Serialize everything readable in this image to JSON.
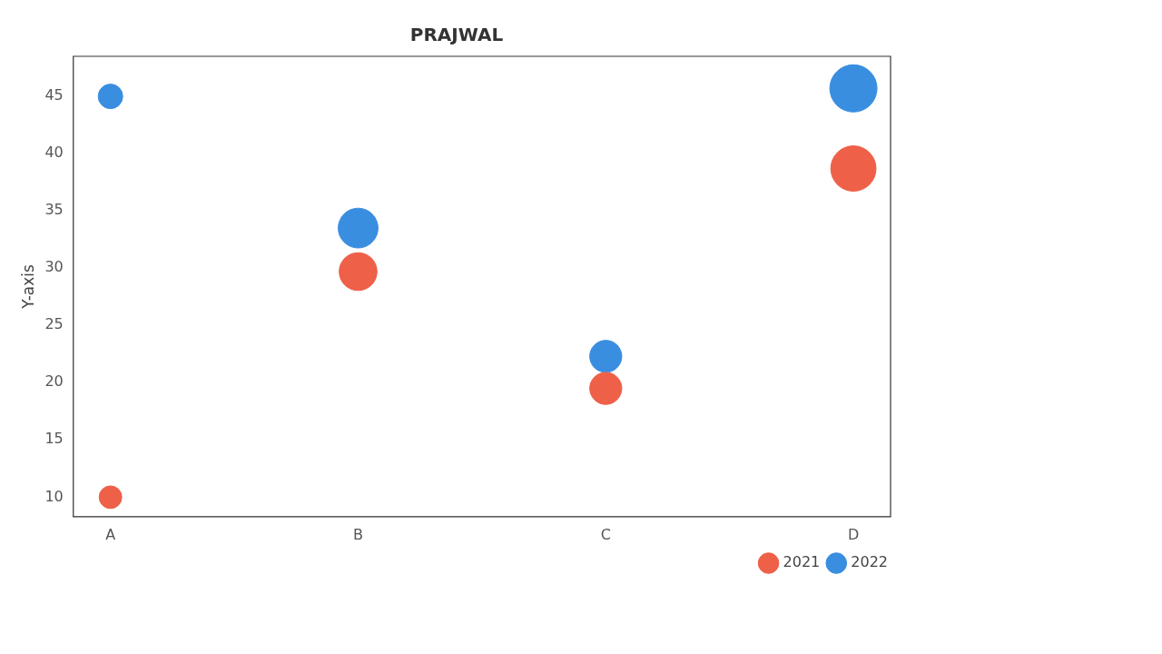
{
  "chart_data": {
    "type": "bubble",
    "title": "PRAJWAL",
    "ylabel": "Y-axis",
    "categories": [
      "A",
      "B",
      "C",
      "D"
    ],
    "series": [
      {
        "name": "2021",
        "color": "#ee6048",
        "values": [
          10,
          29.7,
          19.5,
          38.7
        ],
        "sizes": [
          0.23,
          0.64,
          0.46,
          0.92
        ]
      },
      {
        "name": "2022",
        "color": "#3a8ee0",
        "values": [
          45,
          33.5,
          22.3,
          45.7
        ],
        "sizes": [
          0.27,
          0.71,
          0.46,
          1
        ]
      }
    ],
    "ylim": [
      8.3,
      48.5
    ],
    "yticks": [
      10,
      15,
      20,
      25,
      30,
      35,
      40,
      45
    ],
    "grid": false,
    "legend": "bottom right"
  }
}
